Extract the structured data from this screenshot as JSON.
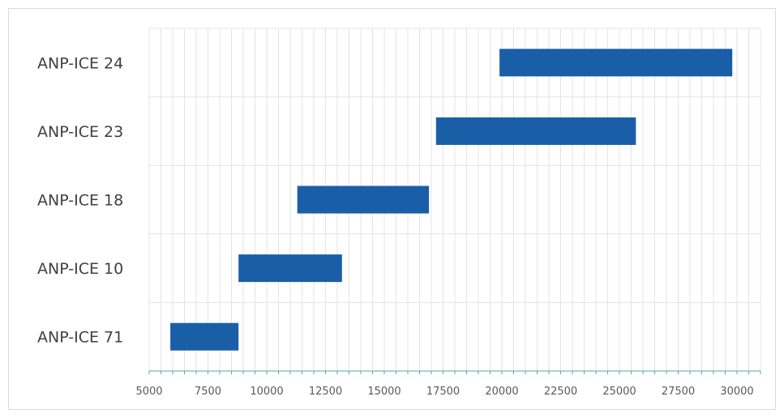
{
  "chart_data": {
    "type": "bar",
    "orientation": "horizontal-floating",
    "title": "",
    "xlabel": "",
    "ylabel": "",
    "categories": [
      "ANP-ICE 24",
      "ANP-ICE 23",
      "ANP-ICE 18",
      "ANP-ICE 10",
      "ANP-ICE 71"
    ],
    "series": [
      {
        "start": [
          19900,
          17200,
          11300,
          8800,
          5900
        ],
        "end": [
          29800,
          25700,
          16900,
          13200,
          8800
        ]
      }
    ],
    "xlim": [
      5000,
      31000
    ],
    "x_ticks": [
      "5000",
      "7500",
      "10000",
      "12500",
      "15000",
      "17500",
      "20000",
      "22500",
      "25000",
      "27500",
      "30000"
    ],
    "grid": true,
    "legend": "none",
    "colors": {
      "bar": "#1a5ea8",
      "grid": "#e3e3e3",
      "axis": "#5aa59a"
    }
  }
}
